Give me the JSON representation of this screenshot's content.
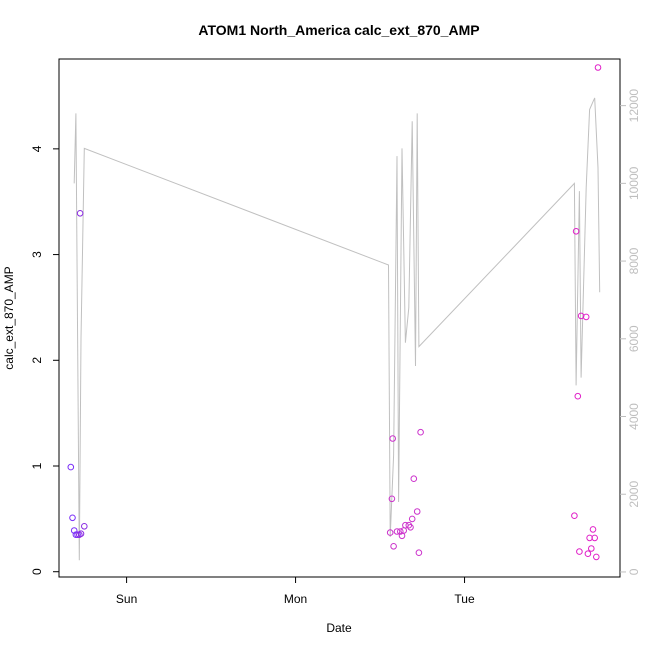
{
  "chart_data": {
    "type": "scatter",
    "title": "ATOM1 North_America calc_ext_870_AMP",
    "xlabel": "Date",
    "ylabel": "calc_ext_870_AMP",
    "x_ticks": [
      "Sun",
      "Mon",
      "Tue"
    ],
    "y_ticks": [
      "0",
      "1",
      "2",
      "3",
      "4"
    ],
    "y2_ticks": [
      "0",
      "2000",
      "4000",
      "6000",
      "8000",
      "10000",
      "12000"
    ],
    "xlim": [
      -0.4,
      2.92
    ],
    "ylim": [
      -0.05,
      4.85
    ],
    "y2lim": [
      -130,
      13200
    ],
    "grid": false,
    "legend": "none",
    "colors": {
      "line": "#c0c0c0",
      "axis": "#000000",
      "axis2": "#bebebe"
    },
    "points": [
      {
        "x": -0.33,
        "y": 0.99,
        "color": "#7b2ff7"
      },
      {
        "x": -0.32,
        "y": 0.51,
        "color": "#7b2ff7"
      },
      {
        "x": -0.31,
        "y": 0.39,
        "color": "#7b2ff7"
      },
      {
        "x": -0.3,
        "y": 0.35,
        "color": "#7b2ff7"
      },
      {
        "x": -0.29,
        "y": 0.35,
        "color": "#7b2ff7"
      },
      {
        "x": -0.28,
        "y": 0.35,
        "color": "#8a2be2"
      },
      {
        "x": -0.275,
        "y": 3.39,
        "color": "#8a2be2"
      },
      {
        "x": -0.27,
        "y": 0.36,
        "color": "#8a2be2"
      },
      {
        "x": -0.25,
        "y": 0.43,
        "color": "#8a2be2"
      },
      {
        "x": 1.56,
        "y": 0.37,
        "color": "#cc33cc"
      },
      {
        "x": 1.57,
        "y": 0.69,
        "color": "#cc33cc"
      },
      {
        "x": 1.575,
        "y": 1.26,
        "color": "#cc33cc"
      },
      {
        "x": 1.58,
        "y": 0.24,
        "color": "#cc33cc"
      },
      {
        "x": 1.6,
        "y": 0.38,
        "color": "#cc33cc"
      },
      {
        "x": 1.62,
        "y": 0.38,
        "color": "#cc33cc"
      },
      {
        "x": 1.63,
        "y": 0.34,
        "color": "#cc33cc"
      },
      {
        "x": 1.64,
        "y": 0.39,
        "color": "#cc33cc"
      },
      {
        "x": 1.65,
        "y": 0.44,
        "color": "#cc33cc"
      },
      {
        "x": 1.67,
        "y": 0.44,
        "color": "#cc33cc"
      },
      {
        "x": 1.68,
        "y": 0.42,
        "color": "#cc33cc"
      },
      {
        "x": 1.69,
        "y": 0.5,
        "color": "#cc33cc"
      },
      {
        "x": 1.7,
        "y": 0.88,
        "color": "#cc33cc"
      },
      {
        "x": 1.72,
        "y": 0.57,
        "color": "#cc33cc"
      },
      {
        "x": 1.73,
        "y": 0.18,
        "color": "#cc33cc"
      },
      {
        "x": 1.74,
        "y": 1.32,
        "color": "#cc33cc"
      },
      {
        "x": 2.65,
        "y": 0.53,
        "color": "#e020c8"
      },
      {
        "x": 2.66,
        "y": 3.22,
        "color": "#e020c8"
      },
      {
        "x": 2.67,
        "y": 1.66,
        "color": "#e020c8"
      },
      {
        "x": 2.68,
        "y": 0.19,
        "color": "#e020c8"
      },
      {
        "x": 2.69,
        "y": 2.42,
        "color": "#e020c8"
      },
      {
        "x": 2.72,
        "y": 2.41,
        "color": "#e020c8"
      },
      {
        "x": 2.73,
        "y": 0.17,
        "color": "#e020c8"
      },
      {
        "x": 2.74,
        "y": 0.32,
        "color": "#e020c8"
      },
      {
        "x": 2.75,
        "y": 0.22,
        "color": "#e020c8"
      },
      {
        "x": 2.76,
        "y": 0.4,
        "color": "#e020c8"
      },
      {
        "x": 2.77,
        "y": 0.32,
        "color": "#e020c8"
      },
      {
        "x": 2.78,
        "y": 0.14,
        "color": "#e020c8"
      },
      {
        "x": 2.79,
        "y": 4.77,
        "color": "#e020c8"
      }
    ],
    "line_series": [
      [
        -0.31,
        10000
      ],
      [
        -0.3,
        11800
      ],
      [
        -0.28,
        300
      ],
      [
        -0.27,
        6000
      ],
      [
        -0.25,
        10900
      ],
      [
        1.55,
        7900
      ],
      [
        1.56,
        900
      ],
      [
        1.58,
        3000
      ],
      [
        1.6,
        10700
      ],
      [
        1.61,
        1800
      ],
      [
        1.63,
        10900
      ],
      [
        1.65,
        5900
      ],
      [
        1.67,
        6800
      ],
      [
        1.69,
        11600
      ],
      [
        1.71,
        5300
      ],
      [
        1.72,
        11800
      ],
      [
        1.73,
        5800
      ],
      [
        2.65,
        10000
      ],
      [
        2.66,
        4800
      ],
      [
        2.68,
        9800
      ],
      [
        2.69,
        5000
      ],
      [
        2.72,
        9900
      ],
      [
        2.74,
        11900
      ],
      [
        2.76,
        12100
      ],
      [
        2.77,
        12200
      ],
      [
        2.79,
        10400
      ],
      [
        2.8,
        7200
      ]
    ]
  }
}
